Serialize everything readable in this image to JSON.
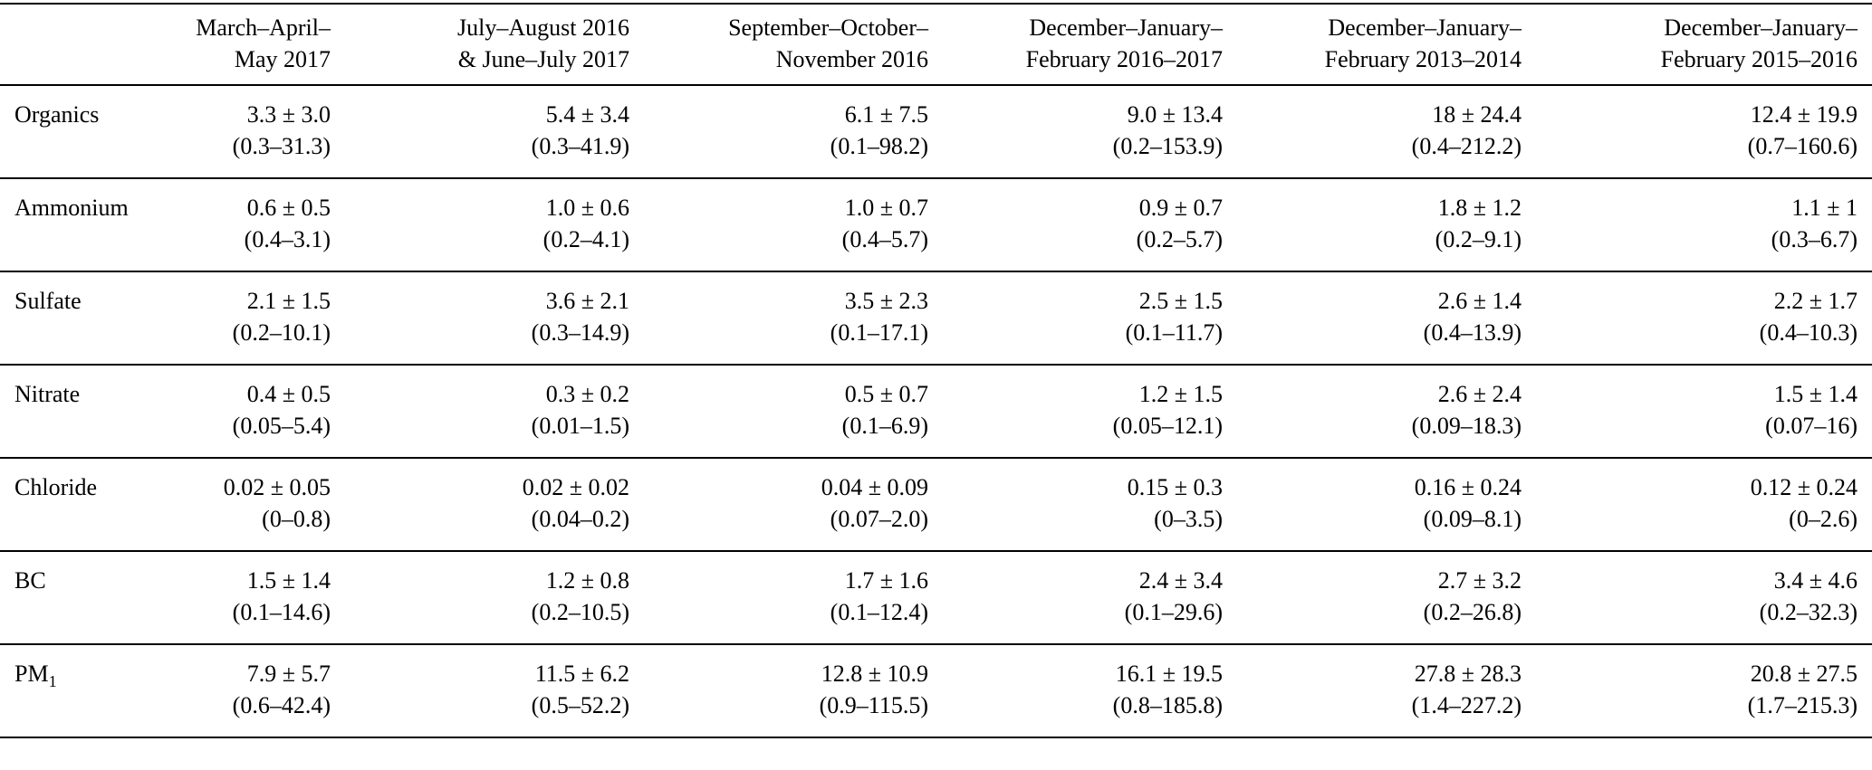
{
  "table": {
    "columns": [
      {
        "line1": "March–April–",
        "line2": "May 2017"
      },
      {
        "line1": "July–August 2016",
        "line2": "& June–July 2017"
      },
      {
        "line1": "September–October–",
        "line2": "November 2016"
      },
      {
        "line1": "December–January–",
        "line2": "February 2016–2017"
      },
      {
        "line1": "December–January–",
        "line2": "February 2013–2014"
      },
      {
        "line1": "December–January–",
        "line2": "February 2015–2016"
      }
    ],
    "rows": [
      {
        "label": "Organics",
        "cells": [
          {
            "mean": "3.3 ± 3.0",
            "range": "(0.3–31.3)"
          },
          {
            "mean": "5.4 ± 3.4",
            "range": "(0.3–41.9)"
          },
          {
            "mean": "6.1 ± 7.5",
            "range": "(0.1–98.2)"
          },
          {
            "mean": "9.0 ± 13.4",
            "range": "(0.2–153.9)"
          },
          {
            "mean": "18 ± 24.4",
            "range": "(0.4–212.2)"
          },
          {
            "mean": "12.4 ± 19.9",
            "range": "(0.7–160.6)"
          }
        ]
      },
      {
        "label": "Ammonium",
        "cells": [
          {
            "mean": "0.6 ± 0.5",
            "range": "(0.4–3.1)"
          },
          {
            "mean": "1.0 ± 0.6",
            "range": "(0.2–4.1)"
          },
          {
            "mean": "1.0 ± 0.7",
            "range": "(0.4–5.7)"
          },
          {
            "mean": "0.9 ± 0.7",
            "range": "(0.2–5.7)"
          },
          {
            "mean": "1.8 ± 1.2",
            "range": "(0.2–9.1)"
          },
          {
            "mean": "1.1 ± 1",
            "range": "(0.3–6.7)"
          }
        ]
      },
      {
        "label": "Sulfate",
        "cells": [
          {
            "mean": "2.1 ± 1.5",
            "range": "(0.2–10.1)"
          },
          {
            "mean": "3.6 ± 2.1",
            "range": "(0.3–14.9)"
          },
          {
            "mean": "3.5 ± 2.3",
            "range": "(0.1–17.1)"
          },
          {
            "mean": "2.5 ± 1.5",
            "range": "(0.1–11.7)"
          },
          {
            "mean": "2.6 ± 1.4",
            "range": "(0.4–13.9)"
          },
          {
            "mean": "2.2 ± 1.7",
            "range": "(0.4–10.3)"
          }
        ]
      },
      {
        "label": "Nitrate",
        "cells": [
          {
            "mean": "0.4 ± 0.5",
            "range": "(0.05–5.4)"
          },
          {
            "mean": "0.3 ± 0.2",
            "range": "(0.01–1.5)"
          },
          {
            "mean": "0.5 ± 0.7",
            "range": "(0.1–6.9)"
          },
          {
            "mean": "1.2 ± 1.5",
            "range": "(0.05–12.1)"
          },
          {
            "mean": "2.6 ± 2.4",
            "range": "(0.09–18.3)"
          },
          {
            "mean": "1.5 ± 1.4",
            "range": "(0.07–16)"
          }
        ]
      },
      {
        "label": "Chloride",
        "cells": [
          {
            "mean": "0.02 ± 0.05",
            "range": "(0–0.8)"
          },
          {
            "mean": "0.02 ± 0.02",
            "range": "(0.04–0.2)"
          },
          {
            "mean": "0.04 ± 0.09",
            "range": "(0.07–2.0)"
          },
          {
            "mean": "0.15 ± 0.3",
            "range": "(0–3.5)"
          },
          {
            "mean": "0.16 ± 0.24",
            "range": "(0.09–8.1)"
          },
          {
            "mean": "0.12 ± 0.24",
            "range": "(0–2.6)"
          }
        ]
      },
      {
        "label": "BC",
        "cells": [
          {
            "mean": "1.5 ± 1.4",
            "range": "(0.1–14.6)"
          },
          {
            "mean": "1.2 ± 0.8",
            "range": "(0.2–10.5)"
          },
          {
            "mean": "1.7 ± 1.6",
            "range": "(0.1–12.4)"
          },
          {
            "mean": "2.4 ± 3.4",
            "range": "(0.1–29.6)"
          },
          {
            "mean": "2.7 ± 3.2",
            "range": "(0.2–26.8)"
          },
          {
            "mean": "3.4 ± 4.6",
            "range": "(0.2–32.3)"
          }
        ]
      },
      {
        "label": "PM",
        "label_sub": "1",
        "cells": [
          {
            "mean": "7.9 ± 5.7",
            "range": "(0.6–42.4)"
          },
          {
            "mean": "11.5 ± 6.2",
            "range": "(0.5–52.2)"
          },
          {
            "mean": "12.8 ± 10.9",
            "range": "(0.9–115.5)"
          },
          {
            "mean": "16.1 ± 19.5",
            "range": "(0.8–185.8)"
          },
          {
            "mean": "27.8 ± 28.3",
            "range": "(1.4–227.2)"
          },
          {
            "mean": "20.8 ± 27.5",
            "range": "(1.7–215.3)"
          }
        ]
      }
    ]
  }
}
